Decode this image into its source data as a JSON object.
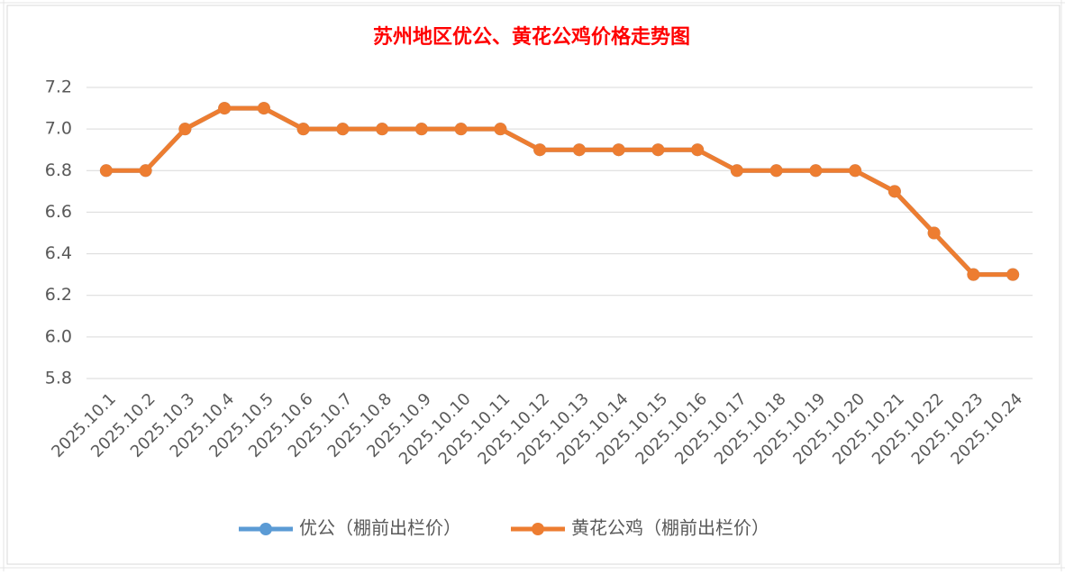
{
  "chart_data": {
    "type": "line",
    "title": "苏州地区优公、黄花公鸡价格走势图",
    "categories": [
      "2025.10.1",
      "2025.10.2",
      "2025.10.3",
      "2025.10.4",
      "2025.10.5",
      "2025.10.6",
      "2025.10.7",
      "2025.10.8",
      "2025.10.9",
      "2025.10.10",
      "2025.10.11",
      "2025.10.12",
      "2025.10.13",
      "2025.10.14",
      "2025.10.15",
      "2025.10.16",
      "2025.10.17",
      "2025.10.18",
      "2025.10.19",
      "2025.10.20",
      "2025.10.21",
      "2025.10.22",
      "2025.10.23",
      "2025.10.24"
    ],
    "series": [
      {
        "name": "优公（棚前出栏价）",
        "color": "#5b9bd5",
        "values": [
          6.8,
          6.8,
          7.0,
          7.1,
          7.1,
          7.0,
          7.0,
          7.0,
          7.0,
          7.0,
          7.0,
          6.9,
          6.9,
          6.9,
          6.9,
          6.9,
          6.8,
          6.8,
          6.8,
          6.8,
          6.7,
          6.5,
          6.3,
          6.3
        ]
      },
      {
        "name": "黄花公鸡（棚前出栏价）",
        "color": "#ed7d31",
        "values": [
          6.8,
          6.8,
          7.0,
          7.1,
          7.1,
          7.0,
          7.0,
          7.0,
          7.0,
          7.0,
          7.0,
          6.9,
          6.9,
          6.9,
          6.9,
          6.9,
          6.8,
          6.8,
          6.8,
          6.8,
          6.7,
          6.5,
          6.3,
          6.3
        ]
      }
    ],
    "ylim": [
      5.8,
      7.2
    ],
    "yticks": [
      5.8,
      {
        "value": 6,
        "label": "6.0"
      },
      6.2,
      6.4,
      6.6,
      6.8,
      {
        "value": 7,
        "label": "7.0"
      },
      7.2
    ],
    "grid": true,
    "legend": "bottom"
  }
}
